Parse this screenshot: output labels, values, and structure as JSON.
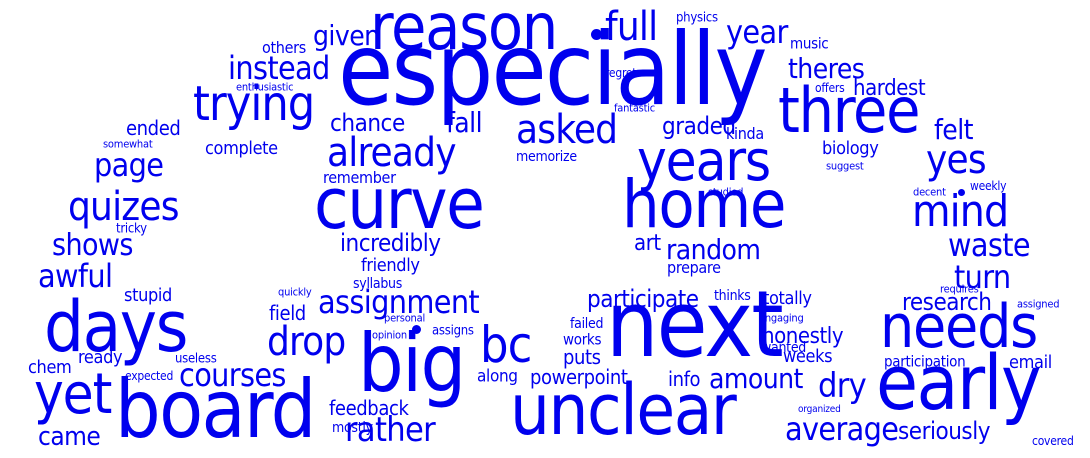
{
  "colors": {
    "text": "#0000ee",
    "background": "#ffffff"
  },
  "words": [
    {
      "text": "especially",
      "size": 100
    },
    {
      "text": "reason",
      "size": 64
    },
    {
      "text": "full",
      "size": 40
    },
    {
      "text": "physics",
      "size": 13
    },
    {
      "text": "year",
      "size": 32
    },
    {
      "text": "music",
      "size": 15
    },
    {
      "text": "given",
      "size": 28
    },
    {
      "text": "others",
      "size": 16
    },
    {
      "text": "instead",
      "size": 32
    },
    {
      "text": "theres",
      "size": 28
    },
    {
      "text": "regret",
      "size": 12
    },
    {
      "text": "offers",
      "size": 12
    },
    {
      "text": "hardest",
      "size": 22
    },
    {
      "text": "enthusiastic",
      "size": 11
    },
    {
      "text": "trying",
      "size": 48
    },
    {
      "text": "three",
      "size": 62
    },
    {
      "text": "fantastic",
      "size": 11
    },
    {
      "text": "kinda",
      "size": 16
    },
    {
      "text": "chance",
      "size": 24
    },
    {
      "text": "fall",
      "size": 28
    },
    {
      "text": "asked",
      "size": 40
    },
    {
      "text": "graded",
      "size": 24
    },
    {
      "text": "felt",
      "size": 28
    },
    {
      "text": "ended",
      "size": 20
    },
    {
      "text": "somewhat",
      "size": 11
    },
    {
      "text": "complete",
      "size": 18
    },
    {
      "text": "already",
      "size": 40
    },
    {
      "text": "biology",
      "size": 18
    },
    {
      "text": "page",
      "size": 32
    },
    {
      "text": "years",
      "size": 56
    },
    {
      "text": "yes",
      "size": 40
    },
    {
      "text": "memorize",
      "size": 14
    },
    {
      "text": "suggest",
      "size": 11
    },
    {
      "text": "remember",
      "size": 16
    },
    {
      "text": "curve",
      "size": 70
    },
    {
      "text": "home",
      "size": 66
    },
    {
      "text": "studied",
      "size": 11
    },
    {
      "text": "decent",
      "size": 11
    },
    {
      "text": "weekly",
      "size": 12
    },
    {
      "text": "quizes",
      "size": 40
    },
    {
      "text": "mind",
      "size": 44
    },
    {
      "text": "tricky",
      "size": 13
    },
    {
      "text": "shows",
      "size": 30
    },
    {
      "text": "incredibly",
      "size": 24
    },
    {
      "text": "art",
      "size": 22
    },
    {
      "text": "random",
      "size": 28
    },
    {
      "text": "waste",
      "size": 32
    },
    {
      "text": "friendly",
      "size": 18
    },
    {
      "text": "prepare",
      "size": 16
    },
    {
      "text": "awful",
      "size": 32
    },
    {
      "text": "syllabus",
      "size": 14
    },
    {
      "text": "turn",
      "size": 32
    },
    {
      "text": "quickly",
      "size": 11
    },
    {
      "text": "requires",
      "size": 11
    },
    {
      "text": "stupid",
      "size": 18
    },
    {
      "text": "participate",
      "size": 24
    },
    {
      "text": "thinks",
      "size": 14
    },
    {
      "text": "research",
      "size": 24
    },
    {
      "text": "assigned",
      "size": 11
    },
    {
      "text": "assignment",
      "size": 32
    },
    {
      "text": "totally",
      "size": 18
    },
    {
      "text": "days",
      "size": 70
    },
    {
      "text": "field",
      "size": 20
    },
    {
      "text": "personal",
      "size": 11
    },
    {
      "text": "engaging",
      "size": 11
    },
    {
      "text": "next",
      "size": 92
    },
    {
      "text": "needs",
      "size": 60
    },
    {
      "text": "drop",
      "size": 40
    },
    {
      "text": "bc",
      "size": 50
    },
    {
      "text": "failed",
      "size": 14
    },
    {
      "text": "wanted",
      "size": 14
    },
    {
      "text": "opinion",
      "size": 11
    },
    {
      "text": "assigns",
      "size": 13
    },
    {
      "text": "honestly",
      "size": 22
    },
    {
      "text": "works",
      "size": 15
    },
    {
      "text": "big",
      "size": 80
    },
    {
      "text": "ready",
      "size": 18
    },
    {
      "text": "useless",
      "size": 13
    },
    {
      "text": "weeks",
      "size": 18
    },
    {
      "text": "participation",
      "size": 15
    },
    {
      "text": "email",
      "size": 18
    },
    {
      "text": "chem",
      "size": 18
    },
    {
      "text": "courses",
      "size": 32
    },
    {
      "text": "puts",
      "size": 20
    },
    {
      "text": "yet",
      "size": 56
    },
    {
      "text": "expected",
      "size": 12
    },
    {
      "text": "along",
      "size": 17
    },
    {
      "text": "powerpoint",
      "size": 20
    },
    {
      "text": "info",
      "size": 20
    },
    {
      "text": "amount",
      "size": 28
    },
    {
      "text": "dry",
      "size": 34
    },
    {
      "text": "early",
      "size": 76
    },
    {
      "text": "board",
      "size": 80
    },
    {
      "text": "unclear",
      "size": 70
    },
    {
      "text": "organized",
      "size": 10
    },
    {
      "text": "feedback",
      "size": 20
    },
    {
      "text": "average",
      "size": 32
    },
    {
      "text": "mostly",
      "size": 14
    },
    {
      "text": "rather",
      "size": 34
    },
    {
      "text": "seriously",
      "size": 24
    },
    {
      "text": "came",
      "size": 26
    },
    {
      "text": "covered",
      "size": 12
    }
  ]
}
